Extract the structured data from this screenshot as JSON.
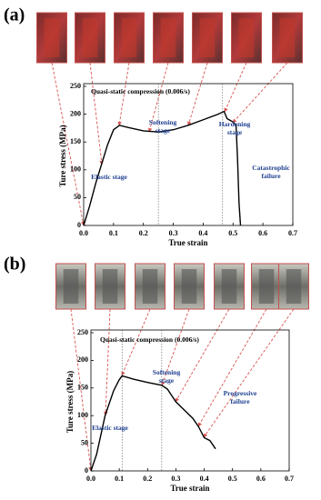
{
  "chart_data": [
    {
      "type": "line",
      "panel_label": "(a)",
      "xlabel": "True strain",
      "ylabel": "Ture stress (MPa)",
      "x": [
        0,
        0.02,
        0.04,
        0.06,
        0.08,
        0.1,
        0.12,
        0.15,
        0.2,
        0.25,
        0.3,
        0.35,
        0.4,
        0.45,
        0.47,
        0.48,
        0.5,
        0.51,
        0.515,
        0.52,
        0.525
      ],
      "values": [
        0,
        35,
        75,
        110,
        145,
        172,
        180,
        176,
        170,
        168,
        172,
        180,
        190,
        200,
        205,
        192,
        186,
        180,
        120,
        40,
        0
      ],
      "color": "#000000",
      "xlim": [
        0,
        0.7
      ],
      "ylim": [
        0,
        250
      ],
      "xticks": [
        {
          "value": 0,
          "label": "0.0"
        },
        0.1,
        0.2,
        0.3,
        0.4,
        0.5,
        0.6,
        0.7
      ],
      "yticks": [
        0,
        50,
        100,
        150,
        200,
        250
      ],
      "reference_lines": [
        0.25,
        0.465
      ],
      "annotations": [
        "Quasi-static compression (0.006/s)",
        "Elastic stage",
        "Softening stage",
        "Hardening stage",
        "Catastrophic failure"
      ]
    },
    {
      "type": "line",
      "panel_label": "(b)",
      "xlabel": "True strain",
      "ylabel": "Ture stress (MPa)",
      "x": [
        0,
        0.02,
        0.05,
        0.08,
        0.1,
        0.11,
        0.15,
        0.2,
        0.25,
        0.27,
        0.3,
        0.33,
        0.36,
        0.38,
        0.4,
        0.42,
        0.44
      ],
      "values": [
        0,
        30,
        100,
        145,
        165,
        172,
        166,
        160,
        155,
        148,
        125,
        110,
        95,
        80,
        60,
        55,
        40
      ],
      "color": "#000000",
      "xlim": [
        0,
        0.7
      ],
      "ylim": [
        0,
        250
      ],
      "xticks": [
        {
          "value": 0,
          "label": "0.0"
        },
        0.1,
        0.2,
        0.3,
        0.4,
        0.5,
        0.6,
        0.7
      ],
      "yticks": [
        0,
        50,
        100,
        150,
        200,
        250
      ],
      "reference_lines": [
        0.11,
        0.25
      ],
      "annotations": [
        "Quasi-static compression (0.006/s)",
        "Elastic stage",
        "Softening stage",
        "Progressive failure"
      ]
    }
  ]
}
